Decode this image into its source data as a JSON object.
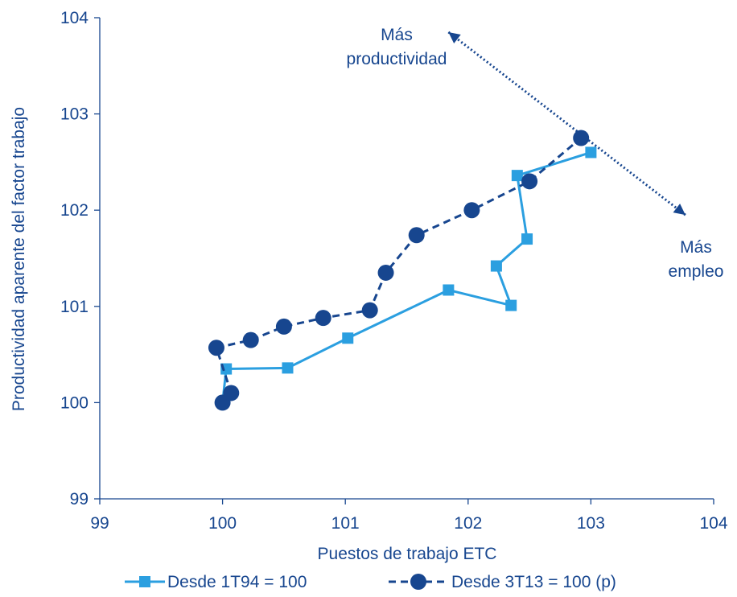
{
  "chart_data": {
    "type": "scatter",
    "xlabel": "Puestos de trabajo ETC",
    "ylabel": "Productividad aparente del factor trabajo",
    "xlim": [
      99,
      104
    ],
    "ylim": [
      99,
      104
    ],
    "xticks": [
      "99",
      "100",
      "101",
      "102",
      "103",
      "104"
    ],
    "yticks": [
      "99",
      "100",
      "101",
      "102",
      "103",
      "104"
    ],
    "grid": false,
    "legend_position": "bottom",
    "series": [
      {
        "name": "Desde 1T94 = 100",
        "color": "#2B9FE0",
        "marker": "square",
        "line_style": "solid",
        "points": [
          [
            100.0,
            100.0
          ],
          [
            100.03,
            100.35
          ],
          [
            100.53,
            100.36
          ],
          [
            101.02,
            100.67
          ],
          [
            101.84,
            101.17
          ],
          [
            102.35,
            101.01
          ],
          [
            102.23,
            101.42
          ],
          [
            102.48,
            101.7
          ],
          [
            102.4,
            102.36
          ],
          [
            103.0,
            102.6
          ]
        ]
      },
      {
        "name": "Desde 3T13 = 100 (p)",
        "color": "#17468F",
        "marker": "circle",
        "line_style": "dashed",
        "points": [
          [
            100.0,
            100.0
          ],
          [
            100.07,
            100.1
          ],
          [
            99.95,
            100.57
          ],
          [
            100.23,
            100.65
          ],
          [
            100.5,
            100.79
          ],
          [
            100.82,
            100.88
          ],
          [
            101.2,
            100.96
          ],
          [
            101.33,
            101.35
          ],
          [
            101.58,
            101.74
          ],
          [
            102.03,
            102.0
          ],
          [
            102.5,
            102.3
          ],
          [
            102.92,
            102.75
          ]
        ]
      }
    ],
    "annotations": {
      "productivity": {
        "line1": "Más",
        "line2": "productividad"
      },
      "employment": {
        "line1": "Más",
        "line2": "empleo"
      },
      "arrow": {
        "from": [
          101.84,
          103.85
        ],
        "to": [
          103.77,
          101.95
        ],
        "style": "dotted"
      }
    }
  },
  "colors": {
    "axis": "#17468F",
    "text": "#17468F",
    "arrow": "#17468F"
  }
}
